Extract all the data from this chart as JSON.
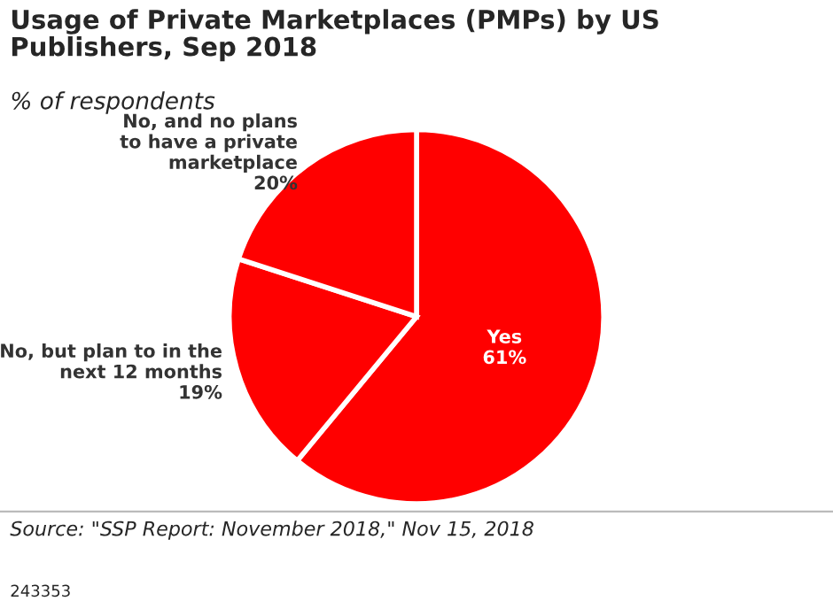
{
  "chart_data": {
    "type": "pie",
    "title": "Usage of Private Marketplaces (PMPs) by US\nPublishers, Sep 2018",
    "subtitle": "% of respondents",
    "categories": [
      "Yes",
      "No, but plan to in the\nnext 12 months",
      "No, and no plans\nto have a private\nmarketplace"
    ],
    "values": [
      61,
      19,
      20
    ],
    "colors": [
      "#ff0000",
      "#ff0000",
      "#ff0000"
    ],
    "value_labels": [
      "61%",
      "19%",
      "20%"
    ],
    "annotations": [
      "Source: \"SSP Report: November 2018,\" Nov 15, 2018",
      "243353"
    ]
  }
}
